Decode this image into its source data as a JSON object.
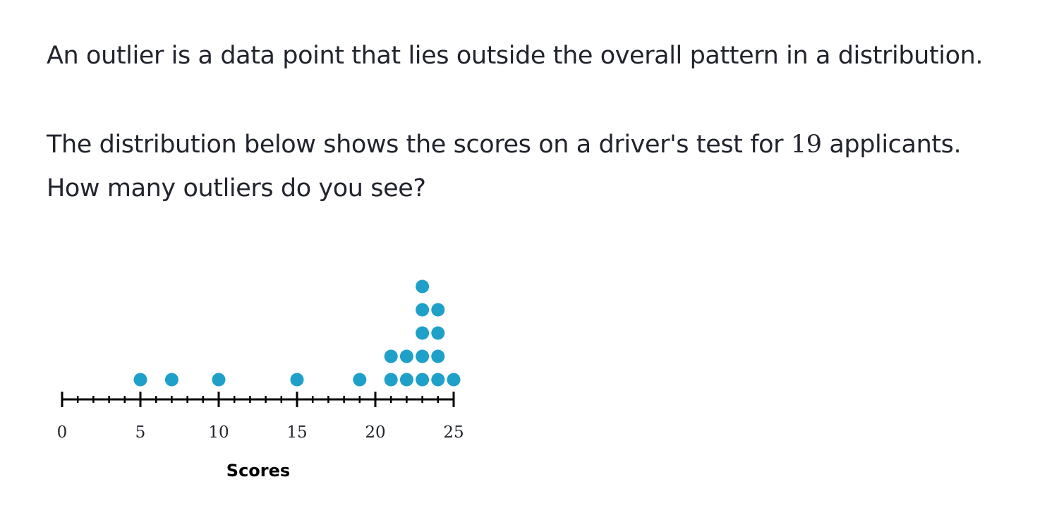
{
  "question": {
    "paragraph_1": "An outlier is a data point that lies outside the overall pattern in a distribution.",
    "paragraph_2_before": "The distribution below shows the scores on a driver's test for ",
    "applicants_count": "19",
    "paragraph_2_after": " applicants.",
    "paragraph_3": "How many outliers do you see?"
  },
  "chart_data": {
    "type": "scatter",
    "subtype": "dot-plot",
    "title": "",
    "xlabel": "Scores",
    "ylabel": "",
    "xlim": [
      0,
      25
    ],
    "x_major_ticks": [
      0,
      5,
      10,
      15,
      20,
      25
    ],
    "x_minor_step": 1,
    "x_tick_labels": [
      "0",
      "5",
      "10",
      "15",
      "20",
      "25"
    ],
    "points": [
      {
        "x": 5,
        "count": 1
      },
      {
        "x": 7,
        "count": 1
      },
      {
        "x": 10,
        "count": 1
      },
      {
        "x": 15,
        "count": 1
      },
      {
        "x": 19,
        "count": 1
      },
      {
        "x": 21,
        "count": 2
      },
      {
        "x": 22,
        "count": 2
      },
      {
        "x": 23,
        "count": 5
      },
      {
        "x": 24,
        "count": 4
      },
      {
        "x": 25,
        "count": 1
      }
    ],
    "dot_color": "#1fa0c9",
    "axis_color": "#000000",
    "grid": false
  }
}
